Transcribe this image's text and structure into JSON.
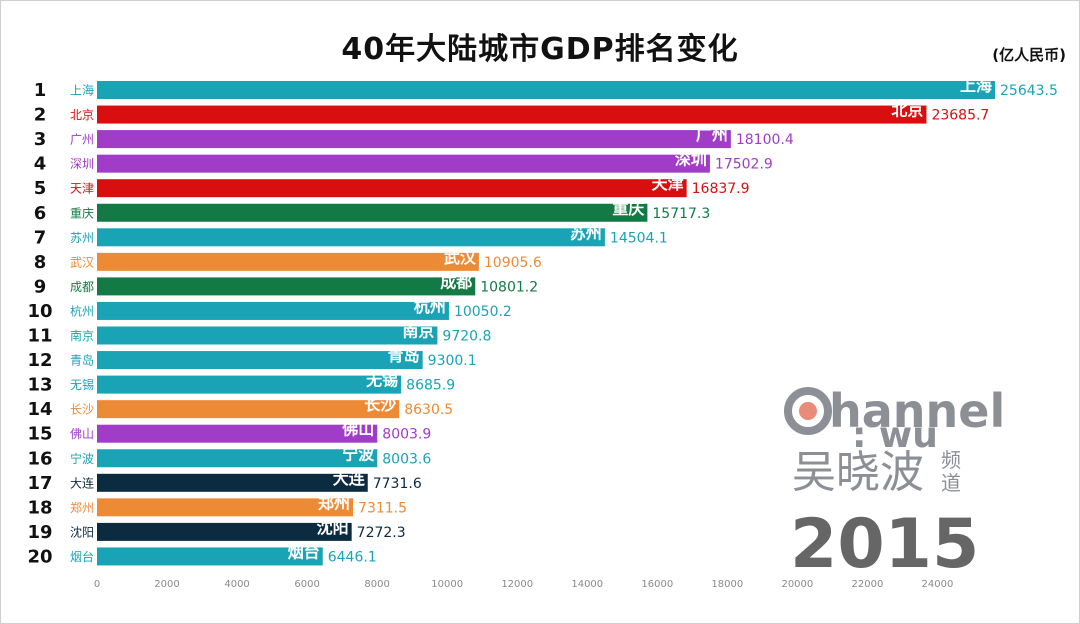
{
  "chart_data": {
    "type": "bar",
    "orientation": "horizontal",
    "title": "40年大陆城市GDP排名变化",
    "unit": "(亿人民币)",
    "year": "2015",
    "xlim": [
      0,
      25643.5
    ],
    "ticks": [
      0,
      2000,
      4000,
      6000,
      8000,
      10000,
      12000,
      14000,
      16000,
      18000,
      20000,
      22000,
      24000
    ],
    "bars": [
      {
        "rank": "1",
        "city": "上海",
        "value": 25643.5,
        "label": "25643.5",
        "color": "#1aa3b5"
      },
      {
        "rank": "2",
        "city": "北京",
        "value": 23685.7,
        "label": "23685.7",
        "color": "#d90f0f"
      },
      {
        "rank": "3",
        "city": "广州",
        "value": 18100.4,
        "label": "18100.4",
        "color": "#a03cc8"
      },
      {
        "rank": "4",
        "city": "深圳",
        "value": 17502.9,
        "label": "17502.9",
        "color": "#a03cc8"
      },
      {
        "rank": "5",
        "city": "天津",
        "value": 16837.9,
        "label": "16837.9",
        "color": "#d90f0f"
      },
      {
        "rank": "6",
        "city": "重庆",
        "value": 15717.3,
        "label": "15717.3",
        "color": "#137a45"
      },
      {
        "rank": "7",
        "city": "苏州",
        "value": 14504.1,
        "label": "14504.1",
        "color": "#1aa3b5"
      },
      {
        "rank": "8",
        "city": "武汉",
        "value": 10905.6,
        "label": "10905.6",
        "color": "#ed8a36"
      },
      {
        "rank": "9",
        "city": "成都",
        "value": 10801.2,
        "label": "10801.2",
        "color": "#137a45"
      },
      {
        "rank": "10",
        "city": "杭州",
        "value": 10050.2,
        "label": "10050.2",
        "color": "#1aa3b5"
      },
      {
        "rank": "11",
        "city": "南京",
        "value": 9720.8,
        "label": "9720.8",
        "color": "#1aa3b5"
      },
      {
        "rank": "12",
        "city": "青岛",
        "value": 9300.1,
        "label": "9300.1",
        "color": "#1aa3b5"
      },
      {
        "rank": "13",
        "city": "无锡",
        "value": 8685.9,
        "label": "8685.9",
        "color": "#1aa3b5"
      },
      {
        "rank": "14",
        "city": "长沙",
        "value": 8630.5,
        "label": "8630.5",
        "color": "#ed8a36"
      },
      {
        "rank": "15",
        "city": "佛山",
        "value": 8003.9,
        "label": "8003.9",
        "color": "#a03cc8"
      },
      {
        "rank": "16",
        "city": "宁波",
        "value": 8003.6,
        "label": "8003.6",
        "color": "#1aa3b5"
      },
      {
        "rank": "17",
        "city": "大连",
        "value": 7731.6,
        "label": "7731.6",
        "color": "#0b2b40"
      },
      {
        "rank": "18",
        "city": "郑州",
        "value": 7311.5,
        "label": "7311.5",
        "color": "#ed8a36"
      },
      {
        "rank": "19",
        "city": "沈阳",
        "value": 7272.3,
        "label": "7272.3",
        "color": "#0b2b40"
      },
      {
        "rank": "20",
        "city": "烟台",
        "value": 6446.1,
        "label": "6446.1",
        "color": "#1aa3b5"
      }
    ]
  },
  "watermark": {
    "channel": "hannel",
    "wu": ": wu",
    "chinese": "吴晓波",
    "pindao_1": "频",
    "pindao_2": "道",
    "logo_ring_color": "#8c8f96",
    "logo_dot_color": "#ea8a78"
  }
}
